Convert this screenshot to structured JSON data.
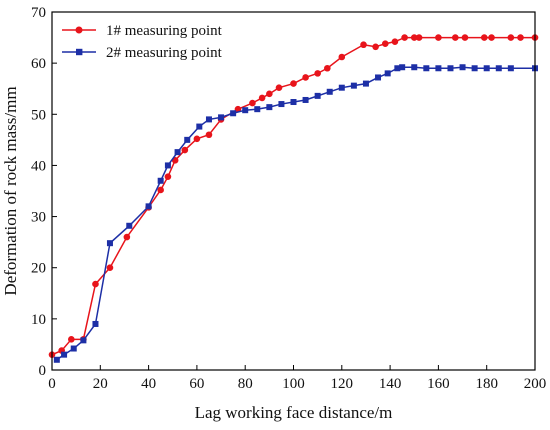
{
  "chart_data": {
    "type": "line",
    "xlabel": "Lag working face distance/m",
    "ylabel": "Deformation of rock mass/mm",
    "xlim": [
      0,
      200
    ],
    "ylim": [
      0,
      70
    ],
    "xticks": [
      0,
      20,
      40,
      60,
      80,
      100,
      120,
      140,
      160,
      180,
      200
    ],
    "yticks": [
      0,
      10,
      20,
      30,
      40,
      50,
      60,
      70
    ],
    "grid": false,
    "legend": "top-left",
    "series": [
      {
        "name": "1# measuring point",
        "color": "#e8141b",
        "marker": "circle",
        "x": [
          0,
          4,
          8,
          13,
          18,
          24,
          31,
          40,
          45,
          48,
          51,
          55,
          60,
          65,
          70,
          77,
          83,
          87,
          90,
          94,
          100,
          105,
          110,
          114,
          120,
          129,
          134,
          138,
          142,
          146,
          150,
          152,
          160,
          167,
          171,
          179,
          182,
          190,
          194,
          200
        ],
        "y": [
          3.0,
          3.8,
          6.0,
          6.0,
          16.8,
          20.0,
          26.0,
          31.8,
          35.2,
          37.8,
          41.0,
          43.0,
          45.2,
          46.0,
          49.0,
          51.0,
          52.2,
          53.2,
          54.0,
          55.2,
          56.0,
          57.2,
          58.0,
          59.0,
          61.2,
          63.6,
          63.2,
          63.8,
          64.2,
          65.0,
          65.0,
          65.0,
          65.0,
          65.0,
          65.0,
          65.0,
          65.0,
          65.0,
          65.0,
          65.0
        ]
      },
      {
        "name": "2# measuring point",
        "color": "#1d2fa6",
        "marker": "square",
        "x": [
          2,
          5,
          9,
          13,
          18,
          24,
          32,
          40,
          45,
          48,
          52,
          56,
          61,
          65,
          70,
          75,
          80,
          85,
          90,
          95,
          100,
          105,
          110,
          115,
          120,
          125,
          130,
          135,
          139,
          143,
          145,
          150,
          155,
          160,
          165,
          170,
          175,
          180,
          185,
          190,
          200
        ],
        "y": [
          2.0,
          3.0,
          4.2,
          5.8,
          9.0,
          24.8,
          28.2,
          32.0,
          37.0,
          40.0,
          42.6,
          45.0,
          47.6,
          49.0,
          49.4,
          50.2,
          50.8,
          51.0,
          51.4,
          52.0,
          52.4,
          52.8,
          53.6,
          54.4,
          55.2,
          55.6,
          56.0,
          57.2,
          58.0,
          59.0,
          59.2,
          59.2,
          59.0,
          59.0,
          59.0,
          59.2,
          59.0,
          59.0,
          59.0,
          59.0,
          59.0
        ]
      }
    ]
  }
}
